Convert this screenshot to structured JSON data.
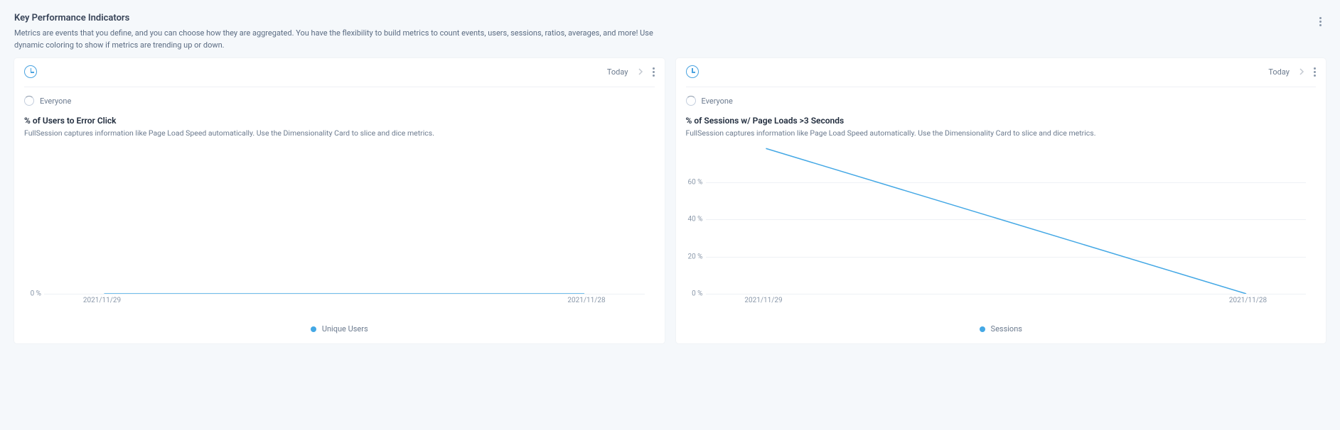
{
  "page": {
    "title": "Key Performance Indicators",
    "description": "Metrics are events that you define, and you can choose how they are aggregated. You have the flexibility to build metrics to count events, users, sessions, ratios, averages, and more! Use dynamic coloring to show if metrics are trending up or down."
  },
  "colors": {
    "page_bg": "#f5f8fb",
    "panel_bg": "#ffffff",
    "text_primary": "#1e2a3b",
    "text_secondary": "#6b7a8e",
    "axis_text": "#8a98aa",
    "gridline": "#eef1f5",
    "series_line": "#44a8e5",
    "legend_dot": "#44a8e5",
    "icon_accent": "#4aa3e0"
  },
  "panels": [
    {
      "id": "left",
      "date_label": "Today",
      "filter_label": "Everyone",
      "chart": {
        "type": "line",
        "title": "% of Users to Error Click",
        "subtitle": "FullSession captures information like Page Load Speed automatically. Use the Dimensionality Card to slice and dice metrics.",
        "y": {
          "min": 0,
          "max": 0.5,
          "ticks": [
            {
              "v": 0,
              "label": "0 %"
            }
          ]
        },
        "x": {
          "labels": [
            "2021/11/29",
            "2021/11/28"
          ],
          "positions_pct": [
            10,
            90
          ]
        },
        "series": [
          {
            "name": "unique_users",
            "points": [
              {
                "x_pct": 10,
                "y_val": 0
              },
              {
                "x_pct": 90,
                "y_val": 0
              }
            ],
            "color": "#44a8e5",
            "line_width": 1.5
          }
        ],
        "gridlines_at": [
          0
        ],
        "legend": [
          {
            "label": "Unique Users",
            "color": "#44a8e5"
          }
        ]
      }
    },
    {
      "id": "right",
      "date_label": "Today",
      "filter_label": "Everyone",
      "chart": {
        "type": "line",
        "title": "% of Sessions w/ Page Loads >3 Seconds",
        "subtitle": "FullSession captures information like Page Load Speed automatically. Use the Dimensionality Card to slice and dice metrics.",
        "y": {
          "min": 0,
          "max": 80,
          "ticks": [
            {
              "v": 0,
              "label": "0 %"
            },
            {
              "v": 20,
              "label": "20 %"
            },
            {
              "v": 40,
              "label": "40 %"
            },
            {
              "v": 60,
              "label": "60 %"
            }
          ]
        },
        "x": {
          "labels": [
            "2021/11/29",
            "2021/11/28"
          ],
          "positions_pct": [
            10,
            90
          ]
        },
        "series": [
          {
            "name": "sessions",
            "points": [
              {
                "x_pct": 10,
                "y_val": 78
              },
              {
                "x_pct": 90,
                "y_val": 0
              }
            ],
            "color": "#44a8e5",
            "line_width": 1.5
          }
        ],
        "gridlines_at": [
          0,
          20,
          40,
          60
        ],
        "legend": [
          {
            "label": "Sessions",
            "color": "#44a8e5"
          }
        ]
      }
    }
  ]
}
